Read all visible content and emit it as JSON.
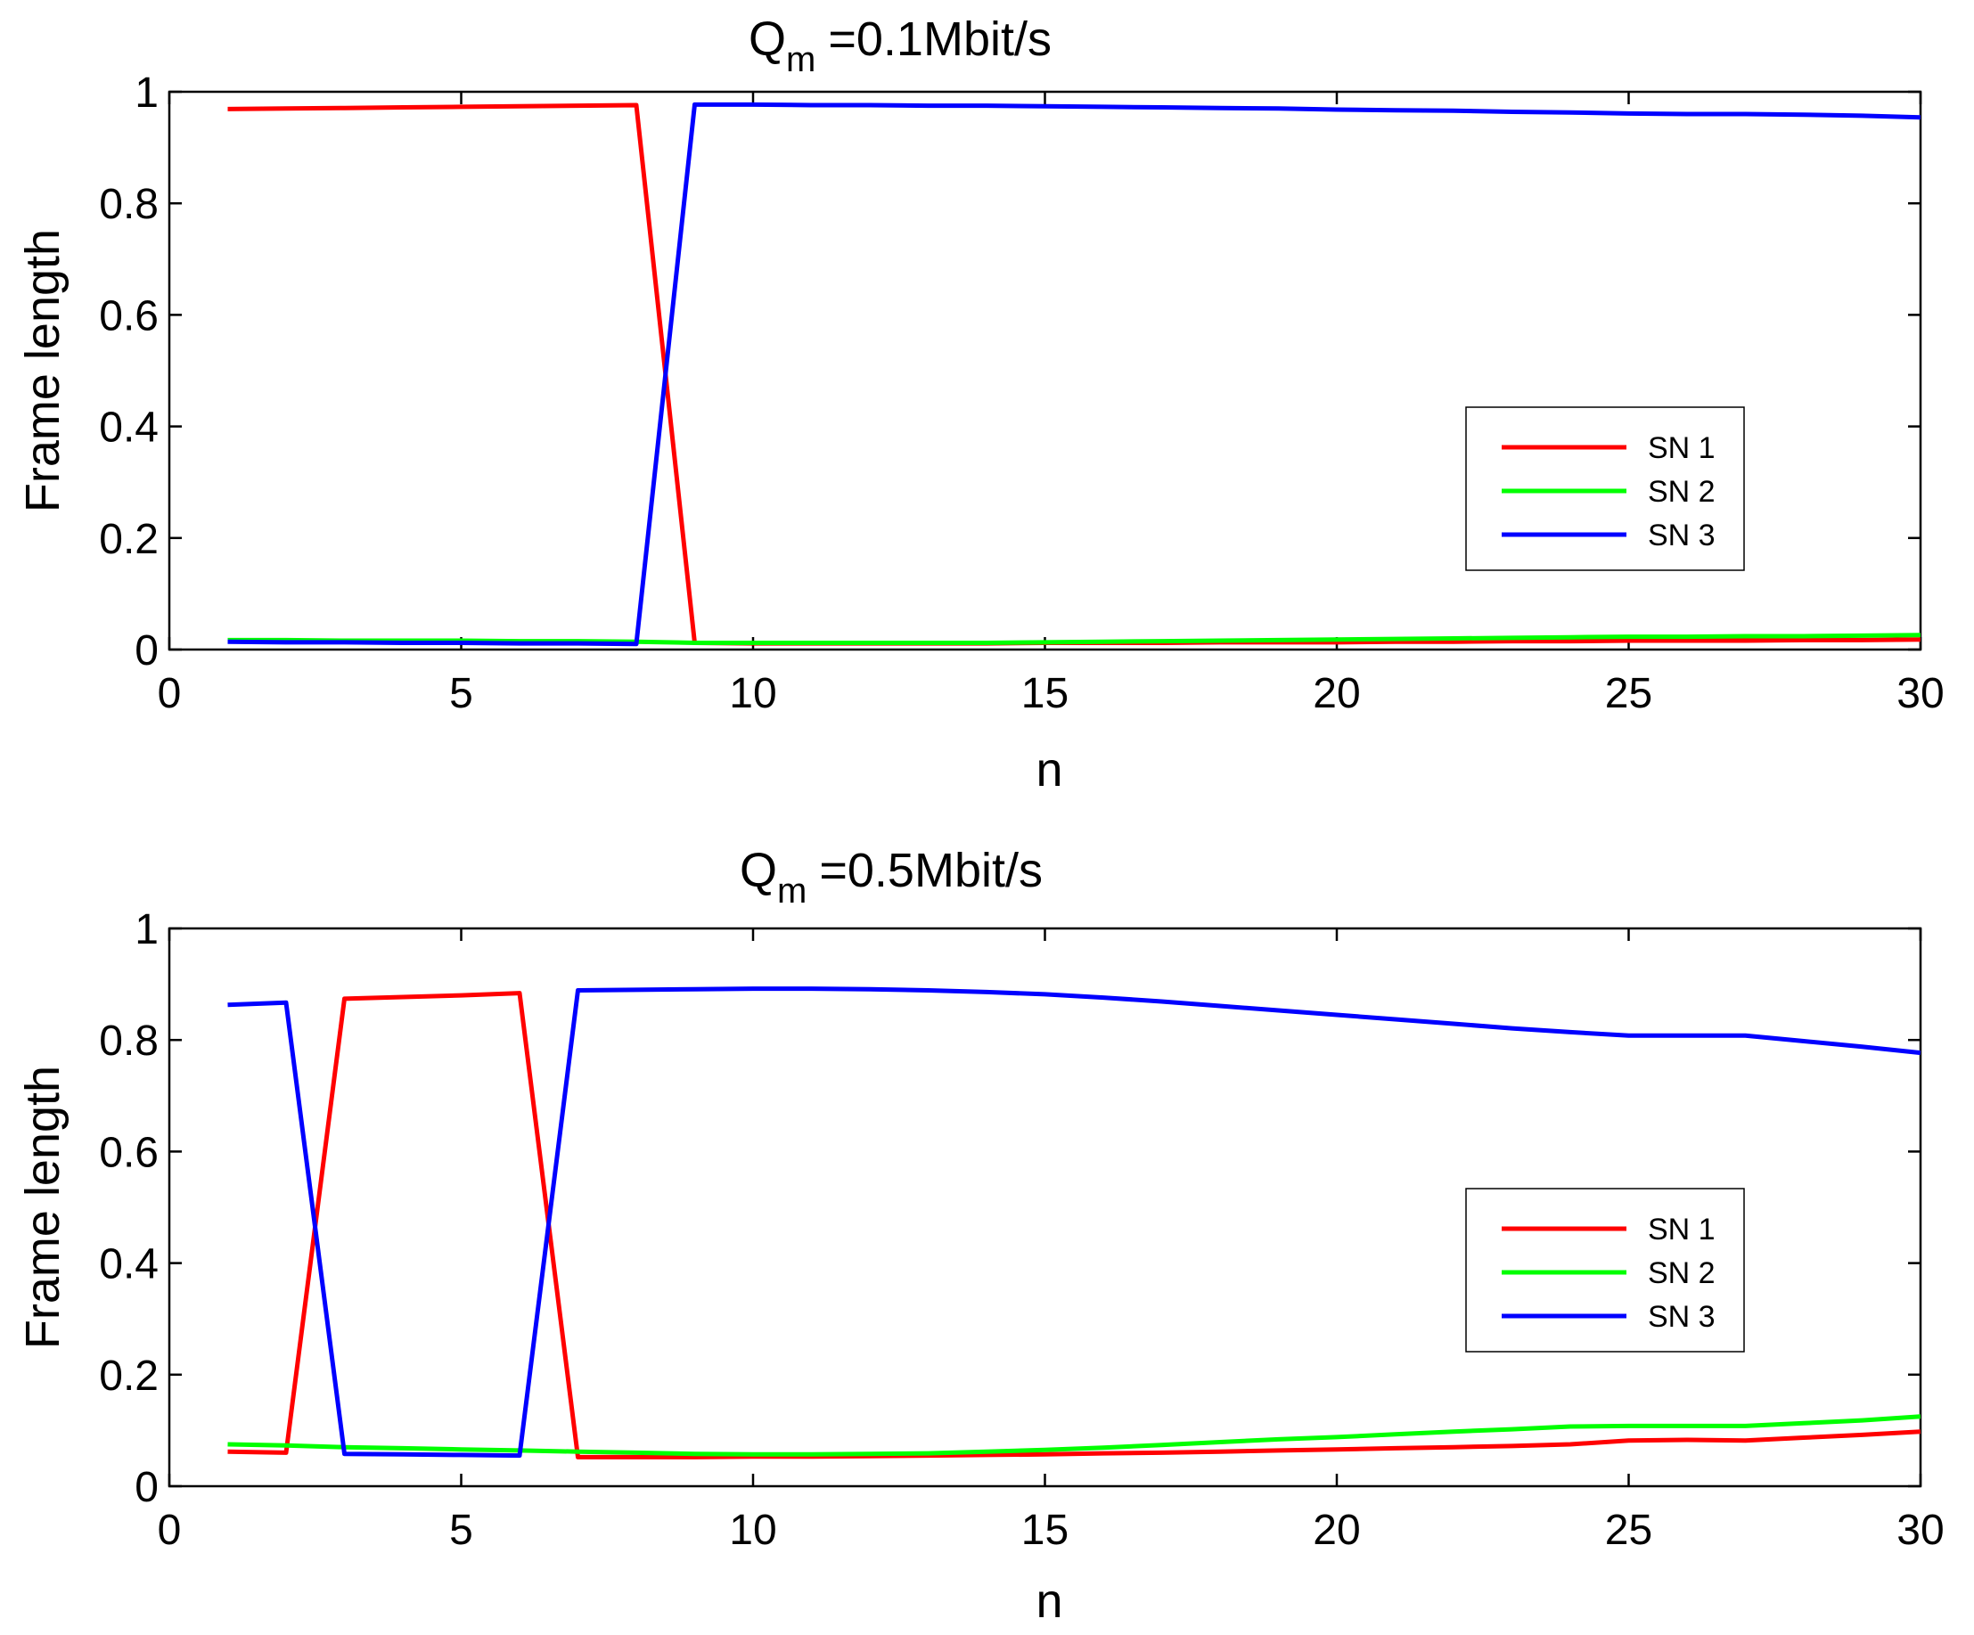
{
  "chart_data": [
    {
      "type": "line",
      "title": "=0.1Mbit/s",
      "title_symbol": "Q",
      "title_subscript": "m",
      "xlabel": "n",
      "ylabel": "Frame length",
      "xlim": [
        0,
        30
      ],
      "ylim": [
        0,
        1
      ],
      "xticks": [
        "0",
        "5",
        "10",
        "15",
        "20",
        "25",
        "30"
      ],
      "yticks": [
        "0",
        "0.2",
        "0.4",
        "0.6",
        "0.8",
        "1"
      ],
      "legend_position": "middle-right",
      "x": [
        1,
        2,
        3,
        4,
        5,
        6,
        7,
        8,
        9,
        10,
        11,
        12,
        13,
        14,
        15,
        16,
        17,
        18,
        19,
        20,
        21,
        22,
        23,
        24,
        25,
        26,
        27,
        28,
        29,
        30
      ],
      "series": [
        {
          "name": "SN 1",
          "color": "#ff0000",
          "values": [
            0.969,
            0.97,
            0.971,
            0.972,
            0.973,
            0.974,
            0.975,
            0.976,
            0.012,
            0.011,
            0.011,
            0.011,
            0.011,
            0.011,
            0.012,
            0.012,
            0.012,
            0.013,
            0.013,
            0.013,
            0.014,
            0.014,
            0.015,
            0.015,
            0.016,
            0.016,
            0.016,
            0.017,
            0.017,
            0.018
          ]
        },
        {
          "name": "SN 2",
          "color": "#00ff00",
          "values": [
            0.017,
            0.017,
            0.016,
            0.016,
            0.016,
            0.015,
            0.015,
            0.014,
            0.012,
            0.012,
            0.012,
            0.012,
            0.012,
            0.012,
            0.013,
            0.014,
            0.015,
            0.016,
            0.017,
            0.018,
            0.019,
            0.02,
            0.021,
            0.022,
            0.023,
            0.023,
            0.024,
            0.024,
            0.025,
            0.026
          ]
        },
        {
          "name": "SN 3",
          "color": "#0000ff",
          "values": [
            0.014,
            0.013,
            0.013,
            0.012,
            0.012,
            0.011,
            0.011,
            0.01,
            0.977,
            0.977,
            0.976,
            0.976,
            0.975,
            0.975,
            0.974,
            0.973,
            0.972,
            0.971,
            0.97,
            0.968,
            0.967,
            0.966,
            0.964,
            0.963,
            0.961,
            0.96,
            0.96,
            0.959,
            0.957,
            0.954
          ]
        }
      ]
    },
    {
      "type": "line",
      "title": "=0.5Mbit/s",
      "title_symbol": "Q",
      "title_subscript": "m",
      "xlabel": "n",
      "ylabel": "Frame length",
      "xlim": [
        0,
        30
      ],
      "ylim": [
        0,
        1
      ],
      "xticks": [
        "0",
        "5",
        "10",
        "15",
        "20",
        "25",
        "30"
      ],
      "yticks": [
        "0",
        "0.2",
        "0.4",
        "0.6",
        "0.8",
        "1"
      ],
      "legend_position": "middle-right",
      "x": [
        1,
        2,
        3,
        4,
        5,
        6,
        7,
        8,
        9,
        10,
        11,
        12,
        13,
        14,
        15,
        16,
        17,
        18,
        19,
        20,
        21,
        22,
        23,
        24,
        25,
        26,
        27,
        28,
        29,
        30
      ],
      "series": [
        {
          "name": "SN 1",
          "color": "#ff0000",
          "values": [
            0.062,
            0.06,
            0.874,
            0.877,
            0.88,
            0.884,
            0.052,
            0.052,
            0.052,
            0.053,
            0.053,
            0.054,
            0.055,
            0.056,
            0.057,
            0.059,
            0.06,
            0.062,
            0.064,
            0.066,
            0.068,
            0.07,
            0.072,
            0.075,
            0.082,
            0.083,
            0.082,
            0.087,
            0.092,
            0.098
          ]
        },
        {
          "name": "SN 2",
          "color": "#00ff00",
          "values": [
            0.075,
            0.073,
            0.07,
            0.068,
            0.066,
            0.064,
            0.062,
            0.06,
            0.058,
            0.057,
            0.057,
            0.058,
            0.059,
            0.062,
            0.065,
            0.069,
            0.074,
            0.079,
            0.084,
            0.088,
            0.093,
            0.098,
            0.102,
            0.107,
            0.108,
            0.108,
            0.108,
            0.113,
            0.118,
            0.125
          ]
        },
        {
          "name": "SN 3",
          "color": "#0000ff",
          "values": [
            0.863,
            0.867,
            0.058,
            0.057,
            0.056,
            0.055,
            0.889,
            0.89,
            0.891,
            0.892,
            0.892,
            0.891,
            0.889,
            0.886,
            0.882,
            0.876,
            0.869,
            0.861,
            0.853,
            0.845,
            0.837,
            0.829,
            0.821,
            0.814,
            0.808,
            0.808,
            0.808,
            0.798,
            0.788,
            0.777
          ]
        }
      ]
    }
  ]
}
